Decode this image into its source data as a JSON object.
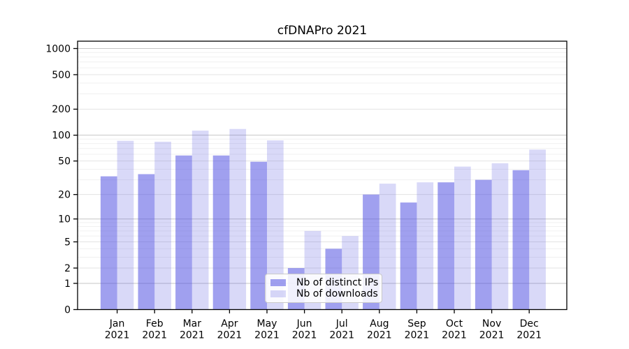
{
  "chart_data": {
    "type": "bar",
    "title": "cfDNAPro 2021",
    "categories": [
      "Jan",
      "Feb",
      "Mar",
      "Apr",
      "May",
      "Jun",
      "Jul",
      "Aug",
      "Sep",
      "Oct",
      "Nov",
      "Dec"
    ],
    "series": [
      {
        "name": "Nb of distinct IPs",
        "color": "rgba(80,80,225,0.54)",
        "values": [
          33,
          35,
          58,
          58,
          49,
          2,
          4,
          20,
          16,
          28,
          30,
          39
        ]
      },
      {
        "name": "Nb of downloads",
        "color": "rgba(80,80,225,0.22)",
        "values": [
          86,
          84,
          113,
          118,
          87,
          7,
          6,
          27,
          28,
          43,
          47,
          68
        ]
      }
    ],
    "x_axis": {
      "label_line2": "2021"
    },
    "y_axis": {
      "scale": "symlog",
      "tick_values": [
        0,
        1,
        2,
        5,
        10,
        20,
        50,
        100,
        200,
        500,
        1000
      ],
      "range": [
        0,
        1000
      ]
    },
    "legend": {
      "position": "bottom-center-inside"
    },
    "grid": true,
    "colors": {
      "axis": "#000000",
      "grid_major": "#c6c6c6",
      "grid_medium": "#e3e3e3",
      "grid_minor": "#f0f0f0",
      "background": "#ffffff"
    }
  }
}
